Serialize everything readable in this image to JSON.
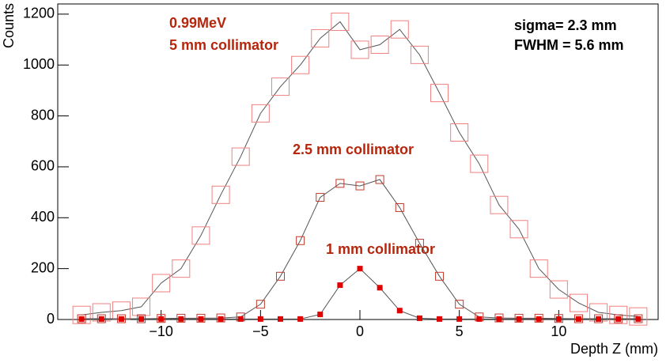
{
  "chart_data": {
    "type": "scatter",
    "x_label": "Depth Z (mm)",
    "y_label": "Counts",
    "annotations": [
      "0.99MeV",
      "5 mm collimator",
      "2.5 mm collimator",
      "1 mm collimator",
      "sigma= 2.3 mm",
      "FWHM = 5.6 mm"
    ],
    "x": [
      -14,
      -13,
      -12,
      -11,
      -10,
      -9,
      -8,
      -7,
      -6,
      -5,
      -4,
      -3,
      -2,
      -1,
      0,
      1,
      2,
      3,
      4,
      5,
      6,
      7,
      8,
      9,
      10,
      11,
      12,
      13,
      14
    ],
    "series": [
      {
        "color": "#f08080",
        "values": [
          18,
          28,
          35,
          50,
          143,
          200,
          330,
          490,
          640,
          810,
          915,
          1000,
          1105,
          1170,
          1060,
          1080,
          1140,
          1040,
          890,
          735,
          612,
          450,
          355,
          200,
          118,
          65,
          28,
          18,
          12
        ]
      },
      {
        "color": "#c0392b",
        "values": [
          3,
          3,
          3,
          3,
          4,
          5,
          5,
          6,
          10,
          60,
          170,
          310,
          480,
          535,
          525,
          550,
          440,
          300,
          170,
          60,
          10,
          6,
          5,
          5,
          4,
          3,
          3,
          3,
          3
        ]
      },
      {
        "color": "#e00000",
        "values": [
          2,
          2,
          2,
          2,
          2,
          2,
          2,
          2,
          2,
          2,
          2,
          2,
          20,
          135,
          200,
          125,
          35,
          5,
          2,
          2,
          2,
          2,
          2,
          2,
          2,
          2,
          2,
          2,
          2
        ]
      }
    ],
    "xlim": [
      -15.2,
      15
    ],
    "ylim": [
      0,
      1240
    ],
    "xticks": [
      {
        "value": -10,
        "label": "−10"
      },
      {
        "value": -5,
        "label": "−5"
      },
      0,
      5,
      10
    ],
    "yticks": [
      0,
      200,
      400,
      600,
      800,
      1000,
      1200
    ]
  }
}
